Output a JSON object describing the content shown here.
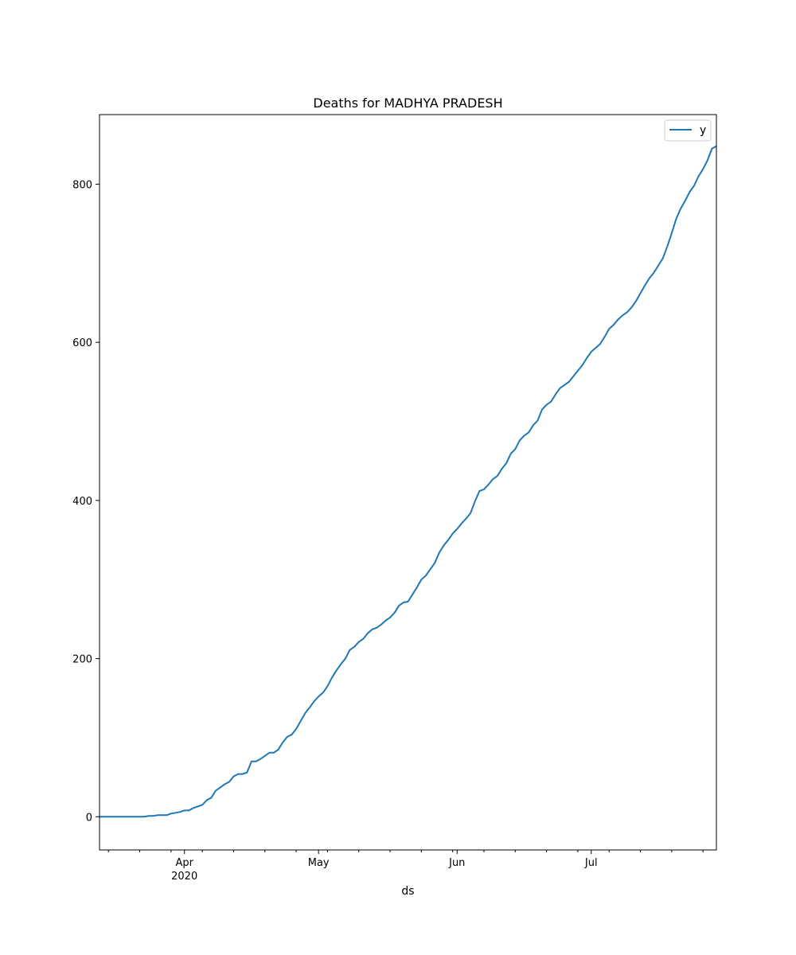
{
  "chart_data": {
    "type": "line",
    "title": "Deaths for MADHYA PRADESH",
    "xlabel": "ds",
    "ylabel": "",
    "x_range": [
      "2020-03-13",
      "2020-07-29"
    ],
    "ylim": [
      -42,
      888
    ],
    "yticks": [
      0,
      200,
      400,
      600,
      800
    ],
    "xticks": [
      {
        "date": "2020-04-01",
        "label": "Apr",
        "sublabel": "2020"
      },
      {
        "date": "2020-05-01",
        "label": "May",
        "sublabel": ""
      },
      {
        "date": "2020-06-01",
        "label": "Jun",
        "sublabel": ""
      },
      {
        "date": "2020-07-01",
        "label": "Jul",
        "sublabel": ""
      }
    ],
    "grid": false,
    "legend": "top-right",
    "series": [
      {
        "name": "y",
        "color": "#1f77b4",
        "points": [
          [
            "2020-03-13",
            0
          ],
          [
            "2020-03-20",
            0
          ],
          [
            "2020-03-23",
            0
          ],
          [
            "2020-03-24",
            1
          ],
          [
            "2020-03-25",
            1
          ],
          [
            "2020-03-26",
            2
          ],
          [
            "2020-03-28",
            2
          ],
          [
            "2020-03-29",
            4
          ],
          [
            "2020-03-31",
            6
          ],
          [
            "2020-04-01",
            8
          ],
          [
            "2020-04-02",
            8
          ],
          [
            "2020-04-03",
            11
          ],
          [
            "2020-04-05",
            15
          ],
          [
            "2020-04-06",
            21
          ],
          [
            "2020-04-07",
            24
          ],
          [
            "2020-04-08",
            33
          ],
          [
            "2020-04-09",
            37
          ],
          [
            "2020-04-10",
            41
          ],
          [
            "2020-04-11",
            44
          ],
          [
            "2020-04-12",
            51
          ],
          [
            "2020-04-13",
            54
          ],
          [
            "2020-04-14",
            54
          ],
          [
            "2020-04-15",
            56
          ],
          [
            "2020-04-16",
            70
          ],
          [
            "2020-04-17",
            70
          ],
          [
            "2020-04-18",
            73
          ],
          [
            "2020-04-19",
            77
          ],
          [
            "2020-04-20",
            81
          ],
          [
            "2020-04-21",
            81
          ],
          [
            "2020-04-22",
            85
          ],
          [
            "2020-04-23",
            94
          ],
          [
            "2020-04-24",
            101
          ],
          [
            "2020-04-25",
            104
          ],
          [
            "2020-04-26",
            111
          ],
          [
            "2020-04-27",
            121
          ],
          [
            "2020-04-28",
            131
          ],
          [
            "2020-04-29",
            138
          ],
          [
            "2020-04-30",
            146
          ],
          [
            "2020-05-01",
            152
          ],
          [
            "2020-05-02",
            157
          ],
          [
            "2020-05-03",
            165
          ],
          [
            "2020-05-04",
            176
          ],
          [
            "2020-05-05",
            185
          ],
          [
            "2020-05-06",
            193
          ],
          [
            "2020-05-07",
            200
          ],
          [
            "2020-05-08",
            211
          ],
          [
            "2020-05-09",
            215
          ],
          [
            "2020-05-10",
            221
          ],
          [
            "2020-05-11",
            225
          ],
          [
            "2020-05-12",
            232
          ],
          [
            "2020-05-13",
            237
          ],
          [
            "2020-05-14",
            239
          ],
          [
            "2020-05-15",
            243
          ],
          [
            "2020-05-16",
            248
          ],
          [
            "2020-05-17",
            252
          ],
          [
            "2020-05-18",
            258
          ],
          [
            "2020-05-19",
            267
          ],
          [
            "2020-05-20",
            271
          ],
          [
            "2020-05-21",
            272
          ],
          [
            "2020-05-22",
            281
          ],
          [
            "2020-05-23",
            290
          ],
          [
            "2020-05-24",
            300
          ],
          [
            "2020-05-25",
            305
          ],
          [
            "2020-05-26",
            313
          ],
          [
            "2020-05-27",
            321
          ],
          [
            "2020-05-28",
            334
          ],
          [
            "2020-05-29",
            343
          ],
          [
            "2020-05-30",
            350
          ],
          [
            "2020-05-31",
            358
          ],
          [
            "2020-06-01",
            364
          ],
          [
            "2020-06-02",
            371
          ],
          [
            "2020-06-03",
            377
          ],
          [
            "2020-06-04",
            384
          ],
          [
            "2020-06-05",
            399
          ],
          [
            "2020-06-06",
            412
          ],
          [
            "2020-06-07",
            414
          ],
          [
            "2020-06-08",
            420
          ],
          [
            "2020-06-09",
            427
          ],
          [
            "2020-06-10",
            431
          ],
          [
            "2020-06-11",
            440
          ],
          [
            "2020-06-12",
            447
          ],
          [
            "2020-06-13",
            459
          ],
          [
            "2020-06-14",
            465
          ],
          [
            "2020-06-15",
            476
          ],
          [
            "2020-06-16",
            482
          ],
          [
            "2020-06-17",
            486
          ],
          [
            "2020-06-18",
            495
          ],
          [
            "2020-06-19",
            501
          ],
          [
            "2020-06-20",
            515
          ],
          [
            "2020-06-21",
            521
          ],
          [
            "2020-06-22",
            525
          ],
          [
            "2020-06-23",
            534
          ],
          [
            "2020-06-24",
            542
          ],
          [
            "2020-06-25",
            546
          ],
          [
            "2020-06-26",
            550
          ],
          [
            "2020-06-27",
            557
          ],
          [
            "2020-06-28",
            564
          ],
          [
            "2020-06-29",
            571
          ],
          [
            "2020-06-30",
            580
          ],
          [
            "2020-07-01",
            588
          ],
          [
            "2020-07-02",
            593
          ],
          [
            "2020-07-03",
            598
          ],
          [
            "2020-07-04",
            607
          ],
          [
            "2020-07-05",
            617
          ],
          [
            "2020-07-06",
            622
          ],
          [
            "2020-07-07",
            629
          ],
          [
            "2020-07-08",
            634
          ],
          [
            "2020-07-09",
            638
          ],
          [
            "2020-07-10",
            644
          ],
          [
            "2020-07-11",
            652
          ],
          [
            "2020-07-12",
            662
          ],
          [
            "2020-07-13",
            672
          ],
          [
            "2020-07-14",
            681
          ],
          [
            "2020-07-15",
            688
          ],
          [
            "2020-07-16",
            697
          ],
          [
            "2020-07-17",
            706
          ],
          [
            "2020-07-18",
            721
          ],
          [
            "2020-07-19",
            738
          ],
          [
            "2020-07-20",
            756
          ],
          [
            "2020-07-21",
            769
          ],
          [
            "2020-07-22",
            779
          ],
          [
            "2020-07-23",
            790
          ],
          [
            "2020-07-24",
            798
          ],
          [
            "2020-07-25",
            810
          ],
          [
            "2020-07-26",
            819
          ],
          [
            "2020-07-27",
            830
          ],
          [
            "2020-07-28",
            845
          ],
          [
            "2020-07-29",
            848
          ]
        ]
      }
    ]
  }
}
